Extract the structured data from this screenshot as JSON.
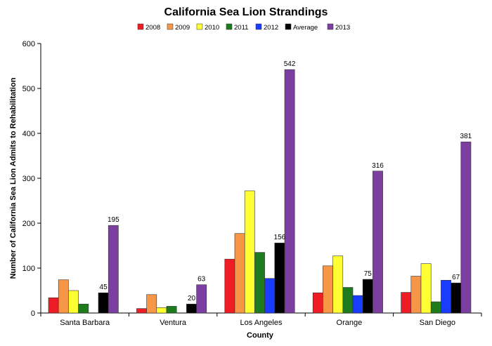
{
  "chart_data": {
    "type": "bar",
    "title": "California Sea Lion Strandings",
    "xlabel": "County",
    "ylabel": "Number of California Sea Lion Admits to Rehabilitation",
    "ylim": [
      0,
      600
    ],
    "yticks": [
      0,
      100,
      200,
      300,
      400,
      500,
      600
    ],
    "grid": false,
    "legend_position": "top",
    "categories": [
      "Santa Barbara",
      "Ventura",
      "Los Angeles",
      "Orange",
      "San Diego"
    ],
    "series": [
      {
        "name": "2008",
        "color": "#ee1c25",
        "values": [
          34,
          10,
          120,
          45,
          46
        ]
      },
      {
        "name": "2009",
        "color": "#f79646",
        "values": [
          74,
          41,
          177,
          105,
          82
        ]
      },
      {
        "name": "2010",
        "color": "#ffff33",
        "values": [
          50,
          12,
          272,
          127,
          110
        ]
      },
      {
        "name": "2011",
        "color": "#1e7b1e",
        "values": [
          20,
          15,
          135,
          57,
          25
        ]
      },
      {
        "name": "2012",
        "color": "#1a3cff",
        "values": [
          0,
          0,
          77,
          39,
          73
        ]
      },
      {
        "name": "Average",
        "color": "#000000",
        "values": [
          45,
          20,
          156,
          75,
          67
        ],
        "labels": [
          "45",
          "20",
          "156",
          "75",
          "67"
        ]
      },
      {
        "name": "2013",
        "color": "#7b3fa0",
        "values": [
          195,
          63,
          542,
          316,
          381
        ],
        "labels": [
          "195",
          "63",
          "542",
          "316",
          "381"
        ]
      }
    ]
  }
}
